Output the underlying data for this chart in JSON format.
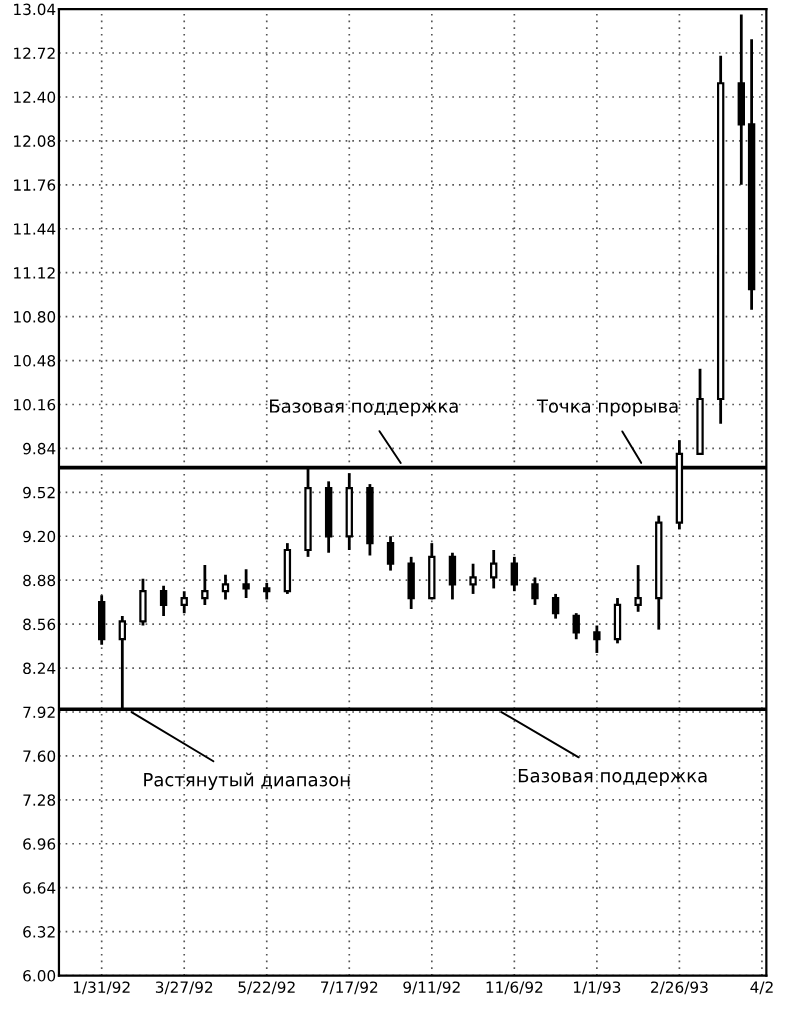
{
  "chart_data": {
    "type": "candlestick",
    "x": [
      "1992-01-31",
      "1992-02-14",
      "1992-02-28",
      "1992-03-13",
      "1992-03-27",
      "1992-04-10",
      "1992-04-24",
      "1992-05-08",
      "1992-05-22",
      "1992-06-05",
      "1992-06-19",
      "1992-07-03",
      "1992-07-17",
      "1992-07-31",
      "1992-08-14",
      "1992-08-28",
      "1992-09-11",
      "1992-09-25",
      "1992-10-09",
      "1992-10-23",
      "1992-11-06",
      "1992-11-20",
      "1992-12-04",
      "1992-12-18",
      "1993-01-01",
      "1993-01-15",
      "1993-01-29",
      "1993-02-12",
      "1993-02-26",
      "1993-03-12",
      "1993-03-26",
      "1993-04-09",
      "1993-04-16"
    ],
    "ohlc": [
      [
        8.72,
        8.77,
        8.41,
        8.45
      ],
      [
        8.45,
        8.62,
        7.94,
        8.58
      ],
      [
        8.58,
        8.89,
        8.55,
        8.8
      ],
      [
        8.8,
        8.84,
        8.62,
        8.7
      ],
      [
        8.7,
        8.8,
        8.64,
        8.75
      ],
      [
        8.75,
        8.99,
        8.7,
        8.8
      ],
      [
        8.8,
        8.92,
        8.74,
        8.85
      ],
      [
        8.85,
        8.96,
        8.75,
        8.82
      ],
      [
        8.82,
        8.86,
        8.74,
        8.8
      ],
      [
        8.8,
        9.15,
        8.78,
        9.1
      ],
      [
        9.1,
        9.7,
        9.05,
        9.55
      ],
      [
        9.55,
        9.6,
        9.08,
        9.2
      ],
      [
        9.2,
        9.66,
        9.1,
        9.55
      ],
      [
        9.55,
        9.58,
        9.06,
        9.15
      ],
      [
        9.15,
        9.2,
        8.95,
        9.0
      ],
      [
        9.0,
        9.05,
        8.67,
        8.75
      ],
      [
        8.75,
        9.15,
        8.74,
        9.05
      ],
      [
        9.05,
        9.08,
        8.74,
        8.85
      ],
      [
        8.85,
        9.0,
        8.78,
        8.9
      ],
      [
        8.9,
        9.1,
        8.82,
        9.0
      ],
      [
        9.0,
        9.05,
        8.8,
        8.85
      ],
      [
        8.85,
        8.9,
        8.7,
        8.75
      ],
      [
        8.75,
        8.78,
        8.6,
        8.64
      ],
      [
        8.62,
        8.64,
        8.45,
        8.5
      ],
      [
        8.5,
        8.55,
        8.35,
        8.45
      ],
      [
        8.45,
        8.75,
        8.42,
        8.7
      ],
      [
        8.7,
        8.99,
        8.65,
        8.75
      ],
      [
        8.75,
        9.35,
        8.52,
        9.3
      ],
      [
        9.3,
        9.9,
        9.25,
        9.8
      ],
      [
        9.8,
        10.42,
        9.8,
        10.2
      ],
      [
        10.2,
        12.7,
        10.02,
        12.5
      ],
      [
        12.5,
        13.0,
        11.76,
        12.2
      ],
      [
        12.2,
        12.82,
        10.85,
        11.0
      ]
    ],
    "color": "#000000",
    "xlim": [
      "1992-01-02",
      "1993-04-26"
    ],
    "xticks": [
      {
        "value": "1992-01-31",
        "label": "1/31/92"
      },
      {
        "value": "1992-03-27",
        "label": "3/27/92"
      },
      {
        "value": "1992-05-22",
        "label": "5/22/92"
      },
      {
        "value": "1992-07-17",
        "label": "7/17/92"
      },
      {
        "value": "1992-09-11",
        "label": "9/11/92"
      },
      {
        "value": "1992-11-06",
        "label": "11/6/92"
      },
      {
        "value": "1993-01-01",
        "label": "1/1/93"
      },
      {
        "value": "1993-02-26",
        "label": "2/26/93"
      },
      {
        "value": "1993-04-23",
        "label": "4/2"
      }
    ],
    "ylim": [
      6,
      13.04
    ],
    "yticks": [
      {
        "value": 6,
        "label": "6.00"
      },
      6.32,
      6.64,
      6.96,
      7.28,
      {
        "value": 7.6,
        "label": "7.60"
      },
      7.92,
      8.24,
      8.56,
      8.88,
      {
        "value": 9.2,
        "label": "9.20"
      },
      9.52,
      9.84,
      10.16,
      10.48,
      {
        "value": 10.8,
        "label": "10.80"
      },
      11.12,
      11.44,
      11.76,
      12.08,
      {
        "value": 12.4,
        "label": "12.40"
      },
      12.72,
      13.04
    ],
    "grid": true,
    "ref_lines": [
      {
        "axis": "y",
        "value": 9.7,
        "color": "#000000"
      },
      {
        "axis": "y",
        "value": 7.94,
        "color": "#000000"
      }
    ],
    "annotations": [
      {
        "text": "Базовая поддержка",
        "x": "1992-08-23",
        "y": 9.7
      },
      {
        "text": "Точка прорыва",
        "x": "1993-02-02",
        "y": 9.7
      },
      {
        "text": "Растянутый диапазон",
        "x": "1992-02-17",
        "y": 7.94
      },
      {
        "text": "Базовая поддержка",
        "x": "1992-10-25",
        "y": 7.94
      }
    ]
  }
}
